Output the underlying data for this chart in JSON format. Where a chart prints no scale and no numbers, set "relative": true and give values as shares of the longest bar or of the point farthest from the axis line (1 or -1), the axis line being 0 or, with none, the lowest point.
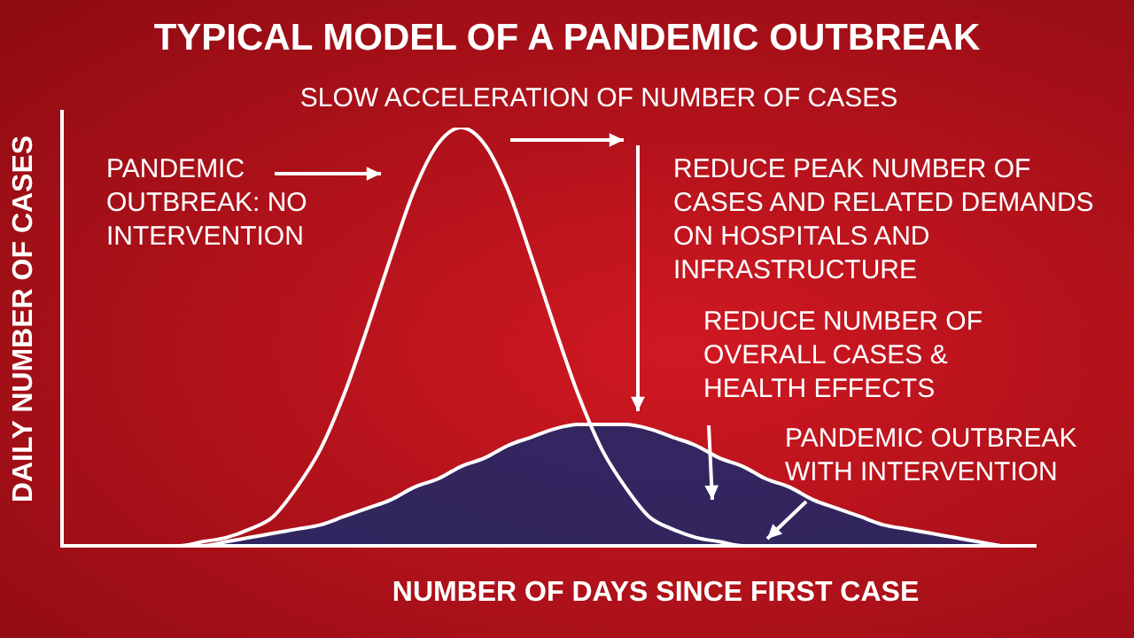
{
  "chart_data": {
    "type": "line",
    "relative": true,
    "title": "TYPICAL MODEL OF A PANDEMIC OUTBREAK",
    "xlabel": "NUMBER OF DAYS SINCE FIRST CASE",
    "ylabel": "DAILY NUMBER OF CASES",
    "categories": [
      null,
      null,
      null,
      null,
      null,
      null,
      null,
      null,
      null,
      null,
      null,
      null,
      null,
      null,
      null,
      null,
      null,
      null,
      null,
      null,
      null,
      null,
      null,
      null,
      null,
      null,
      null,
      null,
      null,
      null,
      null,
      null,
      null,
      null,
      null,
      null,
      null,
      null,
      null,
      null,
      null
    ],
    "series": [
      {
        "type": "line",
        "color": "#ffffff",
        "values": [
          0,
          0,
          0,
          0,
          0,
          0,
          0.01,
          0.02,
          0.04,
          0.07,
          0.14,
          0.23,
          0.36,
          0.52,
          0.69,
          0.85,
          0.96,
          1,
          0.96,
          0.85,
          0.69,
          0.52,
          0.36,
          0.23,
          0.14,
          0.07,
          0.04,
          0.02,
          0.01,
          0,
          0,
          0,
          0,
          0,
          0,
          0,
          0,
          0,
          0,
          0,
          0
        ]
      },
      {
        "type": "area",
        "color": "#1e2a6a",
        "values": [
          0,
          0,
          0,
          0,
          0,
          0,
          0,
          0.01,
          0.02,
          0.03,
          0.04,
          0.05,
          0.07,
          0.09,
          0.11,
          0.14,
          0.16,
          0.19,
          0.21,
          0.24,
          0.26,
          0.28,
          0.29,
          0.29,
          0.29,
          0.28,
          0.26,
          0.24,
          0.21,
          0.19,
          0.16,
          0.14,
          0.11,
          0.09,
          0.07,
          0.05,
          0.04,
          0.03,
          0.02,
          0.01,
          0
        ]
      }
    ],
    "annotations": [
      "SLOW ACCELERATION OF NUMBER OF CASES",
      "PANDEMIC OUTBREAK: NO INTERVENTION",
      "REDUCE PEAK NUMBER OF CASES AND RELATED DEMANDS ON HOSPITALS AND INFRASTRUCTURE",
      "REDUCE NUMBER OF OVERALL CASES & HEALTH EFFECTS",
      "PANDEMIC OUTBREAK WITH INTERVENTION"
    ]
  }
}
